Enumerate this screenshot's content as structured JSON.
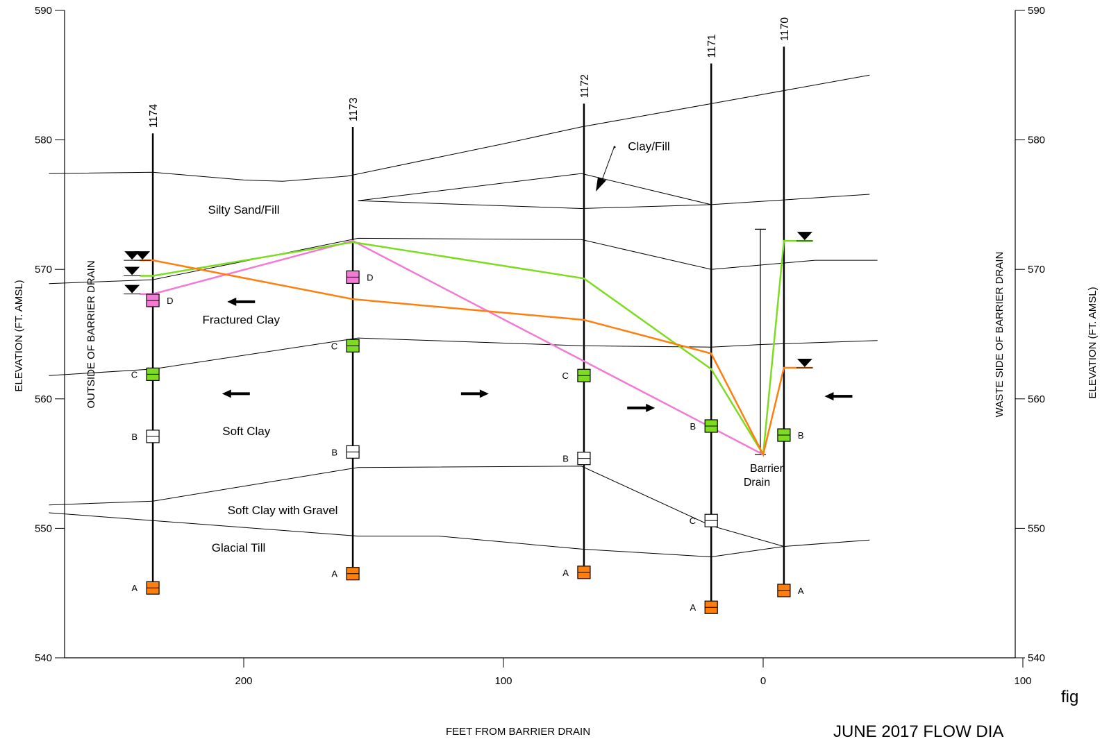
{
  "chart_data": {
    "type": "line",
    "xlabel": "FEET FROM BARRIER DRAIN",
    "ylabel_left": "ELEVATION (FT. AMSL)",
    "ylabel_right": "ELEVATION (FT. AMSL)",
    "side_label_left": "OUTSIDE OF BARRIER DRAIN",
    "side_label_right": "WASTE SIDE OF BARRIER DRAIN",
    "x_reversed": true,
    "xlim": [
      265,
      -100
    ],
    "ylim": [
      540,
      590
    ],
    "x_ticks": [
      {
        "value": 200,
        "label": "200"
      },
      {
        "value": 100,
        "label": "100"
      },
      {
        "value": 0,
        "label": "0"
      },
      {
        "value": -100,
        "label": "100"
      }
    ],
    "y_ticks": [
      {
        "value": 590,
        "label": "590"
      },
      {
        "value": 580,
        "label": "580"
      },
      {
        "value": 570,
        "label": "570"
      },
      {
        "value": 560,
        "label": "560"
      },
      {
        "value": 550,
        "label": "550"
      },
      {
        "value": 540,
        "label": "540"
      }
    ],
    "caption_fragment": "fig",
    "bottom_title_fragment": "JUNE 2017 FLOW DIA",
    "layer_boundaries": [
      {
        "name": "ground-surface",
        "points": [
          [
            275,
            577.4
          ],
          [
            235,
            577.5
          ],
          [
            200,
            576.9
          ],
          [
            185,
            576.8
          ],
          [
            160,
            577.2
          ],
          [
            100,
            579.7
          ],
          [
            70,
            581.0
          ],
          [
            20,
            582.8
          ],
          [
            -41,
            585.0
          ]
        ]
      },
      {
        "name": "clay-fill-top",
        "points": [
          [
            156,
            575.3
          ],
          [
            70,
            577.4
          ],
          [
            20,
            575.0
          ],
          [
            -41,
            575.8
          ]
        ]
      },
      {
        "name": "clay-fill-bottom",
        "points": [
          [
            156,
            575.3
          ],
          [
            70,
            574.7
          ],
          [
            20,
            575.0
          ]
        ]
      },
      {
        "name": "silty-sand-bottom",
        "points": [
          [
            275,
            568.9
          ],
          [
            235,
            569.2
          ],
          [
            156,
            572.4
          ],
          [
            70,
            572.3
          ],
          [
            20,
            570.0
          ],
          [
            -20,
            570.7
          ],
          [
            -44,
            570.7
          ]
        ]
      },
      {
        "name": "fractured-clay-bottom",
        "points": [
          [
            275,
            561.8
          ],
          [
            235,
            562.3
          ],
          [
            156,
            564.7
          ],
          [
            70,
            564.1
          ],
          [
            20,
            564.0
          ],
          [
            0,
            564.2
          ],
          [
            -44,
            564.5
          ]
        ]
      },
      {
        "name": "soft-clay-bottom",
        "points": [
          [
            275,
            551.8
          ],
          [
            235,
            552.1
          ],
          [
            156,
            554.7
          ],
          [
            70,
            554.8
          ],
          [
            20,
            550.2
          ],
          [
            -8,
            548.6
          ],
          [
            -41,
            549.1
          ]
        ]
      },
      {
        "name": "gravel-bottom",
        "points": [
          [
            275,
            551.2
          ],
          [
            235,
            550.6
          ],
          [
            156,
            549.4
          ],
          [
            125,
            549.4
          ],
          [
            70,
            548.4
          ],
          [
            20,
            547.8
          ],
          [
            -8,
            548.6
          ]
        ]
      }
    ],
    "layer_labels": [
      {
        "text": "Silty Sand/Fill",
        "x": 200,
        "y": 574.3
      },
      {
        "text": "Fractured Clay",
        "x": 201,
        "y": 565.8
      },
      {
        "text": "Soft Clay",
        "x": 199,
        "y": 557.2
      },
      {
        "text": "Soft Clay with Gravel",
        "x": 185,
        "y": 551.1
      },
      {
        "text": "Glacial Till",
        "x": 202,
        "y": 548.2
      },
      {
        "text": "Clay/Fill",
        "x": 44,
        "y": 579.2
      }
    ],
    "wells": [
      {
        "id": "1174",
        "x": 235,
        "top": 580.5,
        "bottom": 545.3,
        "screens": [
          {
            "label": "D",
            "elev": 567.6,
            "color": "#f37ad4"
          },
          {
            "label": "C",
            "elev": 561.9,
            "color": "#7ddc1f"
          },
          {
            "label": "B",
            "elev": 557.1,
            "color": "#ffffff"
          },
          {
            "label": "A",
            "elev": 545.4,
            "color": "#ff7f0e"
          }
        ]
      },
      {
        "id": "1173",
        "x": 158,
        "top": 581.0,
        "bottom": 546.5,
        "screens": [
          {
            "label": "D",
            "elev": 569.4,
            "color": "#f37ad4"
          },
          {
            "label": "C",
            "elev": 564.1,
            "color": "#7ddc1f"
          },
          {
            "label": "B",
            "elev": 555.9,
            "color": "#ffffff"
          },
          {
            "label": "A",
            "elev": 546.5,
            "color": "#ff7f0e"
          }
        ]
      },
      {
        "id": "1172",
        "x": 69,
        "top": 582.8,
        "bottom": 546.6,
        "screens": [
          {
            "label": "C",
            "elev": 561.8,
            "color": "#7ddc1f"
          },
          {
            "label": "B",
            "elev": 555.4,
            "color": "#ffffff"
          },
          {
            "label": "A",
            "elev": 546.6,
            "color": "#ff7f0e"
          }
        ]
      },
      {
        "id": "1171",
        "x": 20,
        "top": 585.9,
        "bottom": 543.9,
        "screens": [
          {
            "label": "B",
            "elev": 557.9,
            "color": "#7ddc1f"
          },
          {
            "label": "C",
            "elev": 550.6,
            "color": "#ffffff"
          },
          {
            "label": "A",
            "elev": 543.9,
            "color": "#ff7f0e"
          }
        ]
      },
      {
        "id": "1170",
        "x": -8,
        "top": 587.2,
        "bottom": 545.2,
        "screens": [
          {
            "label": "B",
            "elev": 557.2,
            "color": "#7ddc1f"
          },
          {
            "label": "A",
            "elev": 545.2,
            "color": "#ff7f0e"
          }
        ]
      }
    ],
    "series": [
      {
        "color": "#f37ad4",
        "points": [
          [
            240,
            568.1
          ],
          [
            235,
            568.1
          ],
          [
            158,
            572.2
          ],
          [
            0,
            555.7
          ]
        ]
      },
      {
        "color": "#7ddc1f",
        "points": [
          [
            240,
            569.5
          ],
          [
            235,
            569.5
          ],
          [
            158,
            572.1
          ],
          [
            69,
            569.3
          ],
          [
            20,
            562.3
          ],
          [
            0,
            555.7
          ],
          [
            -8,
            572.2
          ],
          [
            -19,
            572.2
          ]
        ]
      },
      {
        "color": "#ff7f0e",
        "points": [
          [
            240,
            570.7
          ],
          [
            235,
            570.7
          ],
          [
            158,
            567.7
          ],
          [
            69,
            566.1
          ],
          [
            20,
            563.5
          ],
          [
            0,
            555.7
          ],
          [
            -8,
            562.4
          ],
          [
            -19,
            562.4
          ]
        ]
      }
    ],
    "water_level_markers": [
      {
        "x": 243,
        "elev": 570.7
      },
      {
        "x": 243,
        "elev": 569.5
      },
      {
        "x": 239,
        "elev": 570.7
      },
      {
        "x": 243,
        "elev": 568.1
      },
      {
        "x": -16,
        "elev": 572.2
      },
      {
        "x": -16,
        "elev": 562.4
      }
    ],
    "flow_arrows": [
      {
        "x": 201,
        "elev": 567.5,
        "direction": "left"
      },
      {
        "x": 203,
        "elev": 560.4,
        "direction": "left"
      },
      {
        "x": 111,
        "elev": 560.4,
        "direction": "right"
      },
      {
        "x": 47,
        "elev": 559.3,
        "direction": "right"
      },
      {
        "x": -29,
        "elev": 560.2,
        "direction": "left"
      }
    ],
    "barrier_drain": {
      "label_line1": "Barrier",
      "label_line2": "Drain",
      "x": 0,
      "top": 573.1,
      "bottom": 555.7
    }
  }
}
